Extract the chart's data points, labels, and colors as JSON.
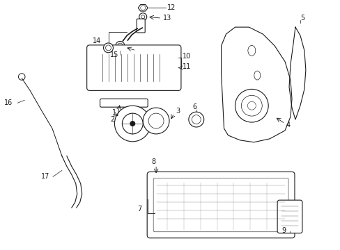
{
  "background_color": "#ffffff",
  "line_color": "#1a1a1a",
  "label_color": "#1a1a1a",
  "figsize": [
    4.89,
    3.6
  ],
  "dpi": 100
}
